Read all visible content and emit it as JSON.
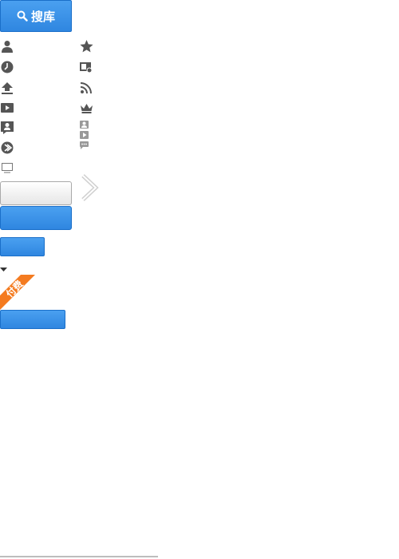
{
  "search_button": {
    "label": "搜库"
  },
  "left_icons": [
    "user-icon",
    "clock-icon",
    "upload-icon",
    "video-icon",
    "profile-icon",
    "forward-icon",
    "monitor-icon"
  ],
  "right_icons": [
    "star-icon",
    "video-playlist-icon",
    "rss-icon",
    "crown-icon",
    "user-video-comment-icon"
  ],
  "paid_badge": {
    "label": "付费",
    "color": "#f47b20"
  },
  "colors": {
    "accent_blue": "#2f86e0",
    "gray_icon": "#555555"
  }
}
